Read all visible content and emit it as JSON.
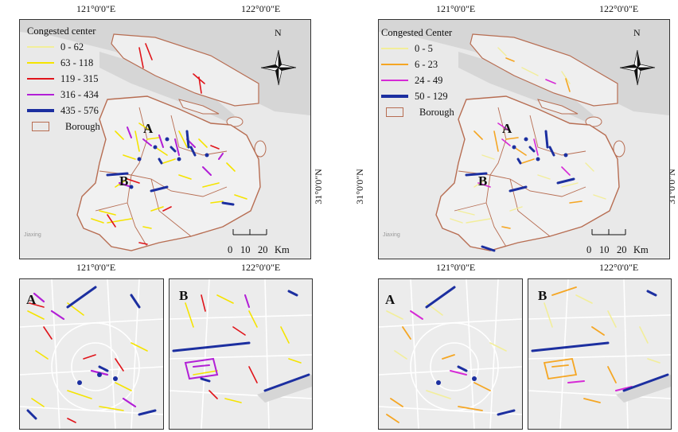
{
  "coords": {
    "top_left_lon": "121°0'0\"E",
    "top_right_lon": "122°0'0\"E",
    "bottom_left_lon": "121°0'0\"E",
    "bottom_right_lon": "122°0'0\"E",
    "lat_left": "31°0'0\"N",
    "lat_right": "31°0'0\"N"
  },
  "left_map": {
    "legend_title": "Congested center",
    "classes": [
      {
        "label": "0 - 62",
        "color": "#f2ee9a"
      },
      {
        "label": "63 - 118",
        "color": "#f5e400"
      },
      {
        "label": "119 - 315",
        "color": "#e0141a"
      },
      {
        "label": "316 - 434",
        "color": "#b21fd6"
      },
      {
        "label": "435 - 576",
        "color": "#1c2fa0"
      }
    ],
    "boundary_label": "Borough",
    "north": "N",
    "markers": {
      "a": "A",
      "b": "B"
    },
    "scale": {
      "labels": [
        "0",
        "10",
        "20"
      ],
      "unit": "Km"
    },
    "inset_a": "A",
    "inset_b": "B"
  },
  "right_map": {
    "legend_title": "Congested Center",
    "classes": [
      {
        "label": "0 - 5",
        "color": "#f2ee9a"
      },
      {
        "label": "6 - 23",
        "color": "#f5a623"
      },
      {
        "label": "24 - 49",
        "color": "#d62ad6"
      },
      {
        "label": "50 - 129",
        "color": "#1c2fa0"
      }
    ],
    "boundary_label": "Borough",
    "north": "N",
    "markers": {
      "a": "A",
      "b": "B"
    },
    "scale": {
      "labels": [
        "0",
        "10",
        "20"
      ],
      "unit": "Km"
    },
    "inset_a": "A",
    "inset_b": "B"
  },
  "faint_label": "Jiaxing",
  "boundary_color": "#b76d52",
  "water_color": "#d9d9d9",
  "land_color": "#ececec"
}
